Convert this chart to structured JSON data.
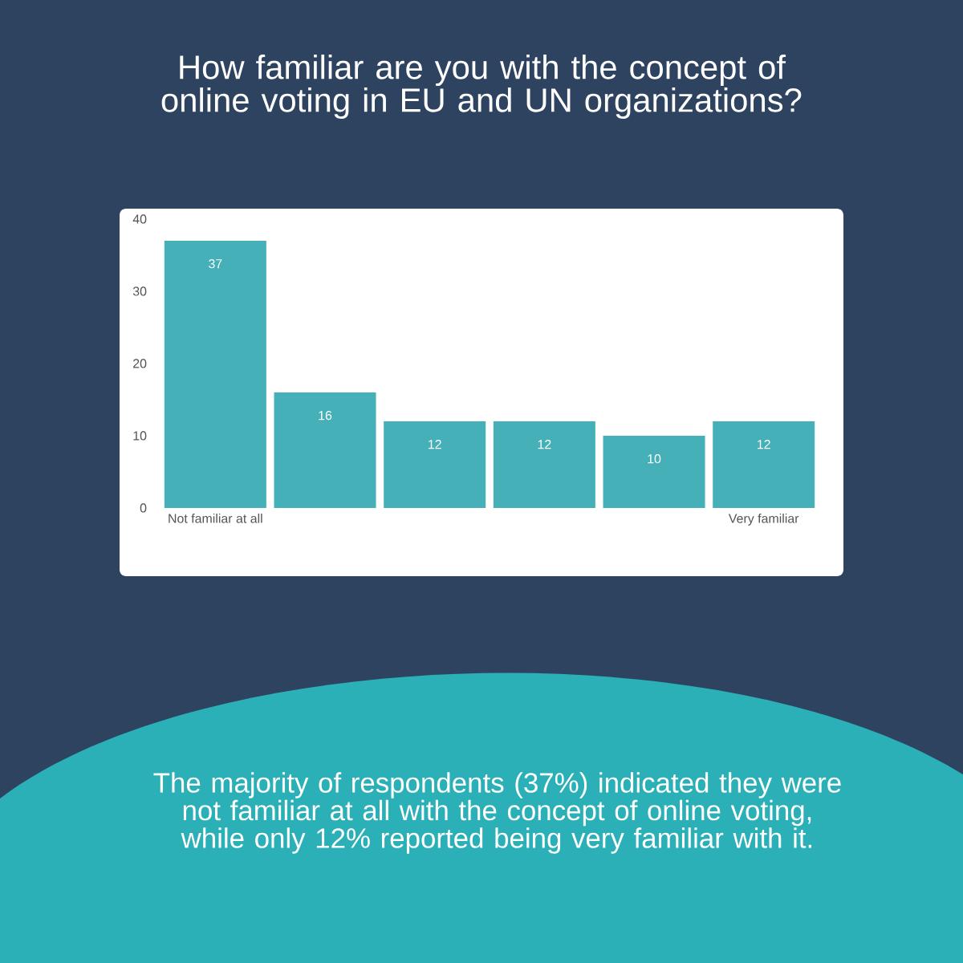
{
  "chart_data": {
    "type": "bar",
    "title": "How familiar are you with the concept of online voting in EU and UN organizations?",
    "categories": [
      "Not familiar at all",
      null,
      null,
      null,
      null,
      "Very familiar"
    ],
    "values": [
      37,
      16,
      12,
      12,
      10,
      12
    ],
    "color": "#45b0b8",
    "ylim": [
      0,
      40
    ],
    "yticks": [
      0,
      10,
      20,
      30,
      40
    ],
    "data_labels": true,
    "annotations": [
      "The majority of respondents (37%) indicated they were not familiar at all with the concept of online voting, while only 12% reported being very familiar with it."
    ]
  }
}
